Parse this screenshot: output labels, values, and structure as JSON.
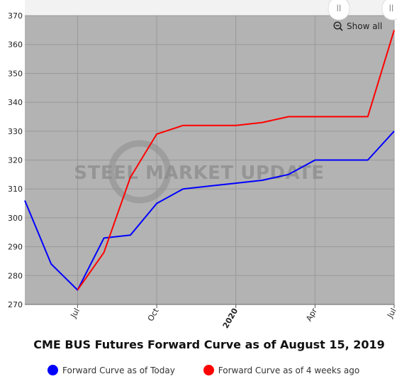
{
  "chart_data": {
    "type": "line",
    "title": "CME BUS Futures Forward Curve as of August 15, 2019",
    "xlabel": "",
    "ylabel": "",
    "ylim": [
      270,
      370
    ],
    "y_ticks": [
      270,
      280,
      290,
      300,
      310,
      320,
      330,
      340,
      350,
      360,
      370
    ],
    "x_ticks": [
      "Jul",
      "Oct",
      "2020",
      "Apr",
      "Jul"
    ],
    "grid": true,
    "legend_position": "bottom",
    "watermark": "STEEL MARKET UPDATE",
    "series": [
      {
        "name": "Forward Curve as of Today",
        "color": "#0000ff",
        "x": [
          "2019-05",
          "2019-06",
          "2019-07",
          "2019-08",
          "2019-09",
          "2019-10",
          "2019-11",
          "2019-12",
          "2020-01",
          "2020-02",
          "2020-03",
          "2020-04",
          "2020-05",
          "2020-06",
          "2020-07"
        ],
        "values": [
          306,
          284,
          275,
          293,
          294,
          305,
          310,
          311,
          312,
          313,
          315,
          320,
          320,
          320,
          330
        ]
      },
      {
        "name": "Forward Curve as of 4 weeks ago",
        "color": "#ff0000",
        "x": [
          "2019-07",
          "2019-08",
          "2019-09",
          "2019-10",
          "2019-11",
          "2019-12",
          "2020-01",
          "2020-02",
          "2020-03",
          "2020-04",
          "2020-05",
          "2020-06",
          "2020-07"
        ],
        "values": [
          275,
          288,
          314,
          329,
          332,
          332,
          332,
          333,
          335,
          335,
          335,
          335,
          365
        ]
      }
    ]
  },
  "controls": {
    "show_all_label": "Show all",
    "navigator_handle": "ll"
  },
  "colors": {
    "plot_background": "#b3b3b3",
    "grid": "#999999",
    "today": "#0000ff",
    "four_weeks_ago": "#ff0000"
  }
}
